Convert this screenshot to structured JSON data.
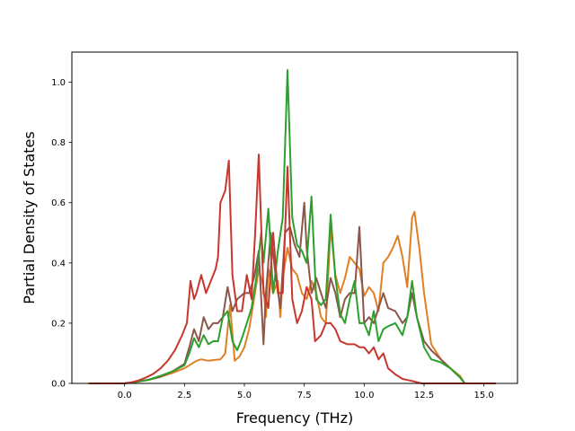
{
  "chart_data": {
    "type": "line",
    "title": "",
    "xlabel": "Frequency (THz)",
    "ylabel": "Partial Density of States",
    "xlim": [
      -2.2,
      16.4
    ],
    "ylim": [
      0.0,
      1.1
    ],
    "xticks": [
      0.0,
      2.5,
      5.0,
      7.5,
      10.0,
      12.5,
      15.0
    ],
    "xtick_labels": [
      "0.0",
      "2.5",
      "5.0",
      "7.5",
      "10.0",
      "12.5",
      "15.0"
    ],
    "yticks": [
      0.0,
      0.2,
      0.4,
      0.6,
      0.8,
      1.0
    ],
    "ytick_labels": [
      "0.0",
      "0.2",
      "0.4",
      "0.6",
      "0.8",
      "1.0"
    ],
    "grid": false,
    "legend": "none",
    "series": [
      {
        "color": "#e07f24",
        "points": [
          [
            -1.5,
            0
          ],
          [
            0,
            0
          ],
          [
            0.5,
            0.005
          ],
          [
            1,
            0.012
          ],
          [
            1.5,
            0.022
          ],
          [
            2,
            0.035
          ],
          [
            2.5,
            0.05
          ],
          [
            2.8,
            0.065
          ],
          [
            3,
            0.075
          ],
          [
            3.2,
            0.08
          ],
          [
            3.5,
            0.075
          ],
          [
            3.8,
            0.078
          ],
          [
            4,
            0.08
          ],
          [
            4.2,
            0.1
          ],
          [
            4.4,
            0.26
          ],
          [
            4.6,
            0.075
          ],
          [
            4.8,
            0.09
          ],
          [
            5,
            0.12
          ],
          [
            5.2,
            0.18
          ],
          [
            5.4,
            0.28
          ],
          [
            5.6,
            0.38
          ],
          [
            5.8,
            0.32
          ],
          [
            5.9,
            0.22
          ],
          [
            6,
            0.38
          ],
          [
            6.2,
            0.3
          ],
          [
            6.4,
            0.34
          ],
          [
            6.5,
            0.22
          ],
          [
            6.6,
            0.35
          ],
          [
            6.8,
            0.45
          ],
          [
            7,
            0.38
          ],
          [
            7.2,
            0.36
          ],
          [
            7.4,
            0.3
          ],
          [
            7.6,
            0.28
          ],
          [
            7.8,
            0.34
          ],
          [
            8,
            0.3
          ],
          [
            8.2,
            0.22
          ],
          [
            8.4,
            0.2
          ],
          [
            8.6,
            0.52
          ],
          [
            8.8,
            0.36
          ],
          [
            9,
            0.3
          ],
          [
            9.2,
            0.35
          ],
          [
            9.4,
            0.42
          ],
          [
            9.6,
            0.4
          ],
          [
            9.8,
            0.38
          ],
          [
            10,
            0.29
          ],
          [
            10.2,
            0.32
          ],
          [
            10.4,
            0.3
          ],
          [
            10.6,
            0.24
          ],
          [
            10.8,
            0.4
          ],
          [
            11,
            0.42
          ],
          [
            11.2,
            0.45
          ],
          [
            11.4,
            0.49
          ],
          [
            11.6,
            0.42
          ],
          [
            11.8,
            0.32
          ],
          [
            12,
            0.55
          ],
          [
            12.1,
            0.57
          ],
          [
            12.3,
            0.45
          ],
          [
            12.5,
            0.3
          ],
          [
            12.8,
            0.13
          ],
          [
            13.2,
            0.08
          ],
          [
            13.6,
            0.05
          ],
          [
            14,
            0.025
          ],
          [
            14.2,
            0
          ],
          [
            15.5,
            0
          ]
        ]
      },
      {
        "color": "#8c564b",
        "points": [
          [
            -1.5,
            0
          ],
          [
            0,
            0
          ],
          [
            0.5,
            0.005
          ],
          [
            1,
            0.012
          ],
          [
            1.5,
            0.022
          ],
          [
            2,
            0.04
          ],
          [
            2.5,
            0.065
          ],
          [
            2.7,
            0.12
          ],
          [
            2.9,
            0.18
          ],
          [
            3.1,
            0.14
          ],
          [
            3.3,
            0.22
          ],
          [
            3.5,
            0.18
          ],
          [
            3.7,
            0.2
          ],
          [
            3.9,
            0.2
          ],
          [
            4.1,
            0.22
          ],
          [
            4.3,
            0.32
          ],
          [
            4.5,
            0.24
          ],
          [
            4.7,
            0.28
          ],
          [
            5,
            0.3
          ],
          [
            5.2,
            0.3
          ],
          [
            5.4,
            0.35
          ],
          [
            5.6,
            0.44
          ],
          [
            5.8,
            0.13
          ],
          [
            5.9,
            0.3
          ],
          [
            6.1,
            0.5
          ],
          [
            6.3,
            0.36
          ],
          [
            6.5,
            0.25
          ],
          [
            6.7,
            0.5
          ],
          [
            6.9,
            0.52
          ],
          [
            7.1,
            0.46
          ],
          [
            7.3,
            0.42
          ],
          [
            7.5,
            0.6
          ],
          [
            7.6,
            0.45
          ],
          [
            7.8,
            0.3
          ],
          [
            8,
            0.35
          ],
          [
            8.2,
            0.3
          ],
          [
            8.4,
            0.25
          ],
          [
            8.6,
            0.35
          ],
          [
            8.8,
            0.3
          ],
          [
            9,
            0.22
          ],
          [
            9.2,
            0.28
          ],
          [
            9.4,
            0.3
          ],
          [
            9.6,
            0.3
          ],
          [
            9.8,
            0.52
          ],
          [
            10,
            0.2
          ],
          [
            10.2,
            0.22
          ],
          [
            10.4,
            0.2
          ],
          [
            10.6,
            0.25
          ],
          [
            10.8,
            0.3
          ],
          [
            11,
            0.25
          ],
          [
            11.3,
            0.24
          ],
          [
            11.6,
            0.2
          ],
          [
            11.8,
            0.22
          ],
          [
            12,
            0.3
          ],
          [
            12.2,
            0.22
          ],
          [
            12.5,
            0.14
          ],
          [
            12.8,
            0.11
          ],
          [
            13.2,
            0.08
          ],
          [
            13.6,
            0.05
          ],
          [
            14,
            0.02
          ],
          [
            14.2,
            0
          ],
          [
            15.5,
            0
          ]
        ]
      },
      {
        "color": "#2ca02c",
        "points": [
          [
            -1.5,
            0
          ],
          [
            0,
            0
          ],
          [
            0.5,
            0.005
          ],
          [
            1,
            0.012
          ],
          [
            1.5,
            0.025
          ],
          [
            2,
            0.04
          ],
          [
            2.5,
            0.06
          ],
          [
            2.7,
            0.1
          ],
          [
            2.9,
            0.15
          ],
          [
            3.1,
            0.12
          ],
          [
            3.3,
            0.16
          ],
          [
            3.5,
            0.13
          ],
          [
            3.7,
            0.14
          ],
          [
            3.9,
            0.14
          ],
          [
            4.1,
            0.22
          ],
          [
            4.3,
            0.24
          ],
          [
            4.5,
            0.14
          ],
          [
            4.7,
            0.11
          ],
          [
            4.9,
            0.15
          ],
          [
            5.1,
            0.2
          ],
          [
            5.3,
            0.25
          ],
          [
            5.5,
            0.35
          ],
          [
            5.7,
            0.5
          ],
          [
            5.8,
            0.4
          ],
          [
            6,
            0.58
          ],
          [
            6.2,
            0.3
          ],
          [
            6.4,
            0.44
          ],
          [
            6.6,
            0.55
          ],
          [
            6.8,
            1.04
          ],
          [
            7,
            0.55
          ],
          [
            7.2,
            0.46
          ],
          [
            7.4,
            0.44
          ],
          [
            7.6,
            0.4
          ],
          [
            7.8,
            0.62
          ],
          [
            8,
            0.28
          ],
          [
            8.2,
            0.26
          ],
          [
            8.4,
            0.28
          ],
          [
            8.6,
            0.56
          ],
          [
            8.8,
            0.35
          ],
          [
            9,
            0.23
          ],
          [
            9.2,
            0.2
          ],
          [
            9.4,
            0.28
          ],
          [
            9.6,
            0.34
          ],
          [
            9.8,
            0.2
          ],
          [
            10,
            0.2
          ],
          [
            10.2,
            0.16
          ],
          [
            10.4,
            0.24
          ],
          [
            10.6,
            0.14
          ],
          [
            10.8,
            0.18
          ],
          [
            11,
            0.19
          ],
          [
            11.3,
            0.2
          ],
          [
            11.6,
            0.16
          ],
          [
            11.8,
            0.22
          ],
          [
            12,
            0.34
          ],
          [
            12.2,
            0.22
          ],
          [
            12.5,
            0.12
          ],
          [
            12.8,
            0.08
          ],
          [
            13.2,
            0.07
          ],
          [
            13.6,
            0.05
          ],
          [
            14,
            0.02
          ],
          [
            14.2,
            0
          ],
          [
            15.5,
            0
          ]
        ]
      },
      {
        "color": "#c8372d",
        "points": [
          [
            -1.5,
            0
          ],
          [
            0,
            0
          ],
          [
            0.3,
            0.004
          ],
          [
            0.6,
            0.01
          ],
          [
            0.9,
            0.02
          ],
          [
            1.2,
            0.032
          ],
          [
            1.5,
            0.05
          ],
          [
            1.8,
            0.075
          ],
          [
            2.1,
            0.11
          ],
          [
            2.4,
            0.16
          ],
          [
            2.6,
            0.2
          ],
          [
            2.75,
            0.34
          ],
          [
            2.9,
            0.28
          ],
          [
            3,
            0.3
          ],
          [
            3.2,
            0.36
          ],
          [
            3.4,
            0.3
          ],
          [
            3.6,
            0.34
          ],
          [
            3.8,
            0.38
          ],
          [
            3.9,
            0.42
          ],
          [
            4,
            0.6
          ],
          [
            4.2,
            0.64
          ],
          [
            4.35,
            0.74
          ],
          [
            4.5,
            0.36
          ],
          [
            4.7,
            0.24
          ],
          [
            4.9,
            0.24
          ],
          [
            5.1,
            0.36
          ],
          [
            5.3,
            0.28
          ],
          [
            5.45,
            0.5
          ],
          [
            5.6,
            0.76
          ],
          [
            5.8,
            0.3
          ],
          [
            6,
            0.25
          ],
          [
            6.2,
            0.5
          ],
          [
            6.4,
            0.3
          ],
          [
            6.6,
            0.3
          ],
          [
            6.8,
            0.72
          ],
          [
            7,
            0.28
          ],
          [
            7.2,
            0.2
          ],
          [
            7.4,
            0.24
          ],
          [
            7.6,
            0.32
          ],
          [
            7.8,
            0.28
          ],
          [
            7.95,
            0.14
          ],
          [
            8.2,
            0.16
          ],
          [
            8.4,
            0.2
          ],
          [
            8.6,
            0.2
          ],
          [
            8.8,
            0.18
          ],
          [
            9,
            0.14
          ],
          [
            9.3,
            0.13
          ],
          [
            9.6,
            0.13
          ],
          [
            9.8,
            0.12
          ],
          [
            10,
            0.12
          ],
          [
            10.2,
            0.1
          ],
          [
            10.4,
            0.12
          ],
          [
            10.6,
            0.08
          ],
          [
            10.8,
            0.1
          ],
          [
            11,
            0.05
          ],
          [
            11.3,
            0.03
          ],
          [
            11.6,
            0.015
          ],
          [
            12,
            0.008
          ],
          [
            12.4,
            0
          ],
          [
            15.5,
            0
          ]
        ]
      }
    ]
  }
}
